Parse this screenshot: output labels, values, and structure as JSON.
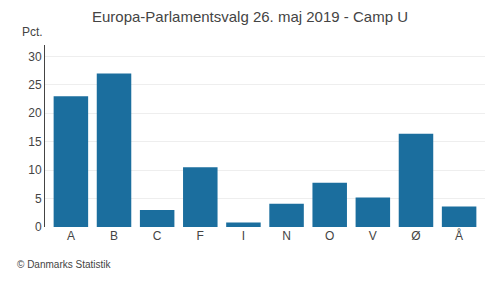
{
  "chart_data": {
    "type": "bar",
    "title": "Europa-Parlamentsvalg 26. maj 2019 - Camp U",
    "ylabel": "Pct.",
    "annotations": [
      "© Danmarks Statistik"
    ],
    "categories": [
      "A",
      "B",
      "C",
      "F",
      "I",
      "N",
      "O",
      "V",
      "Ø",
      "Å"
    ],
    "values": [
      23.0,
      27.0,
      3.0,
      10.5,
      0.8,
      4.1,
      7.8,
      5.2,
      16.4,
      3.6
    ],
    "color": "#1b6e9e",
    "ylim": [
      0,
      32
    ],
    "yticks": [
      0,
      5,
      10,
      15,
      20,
      25,
      30
    ],
    "grid": true
  }
}
